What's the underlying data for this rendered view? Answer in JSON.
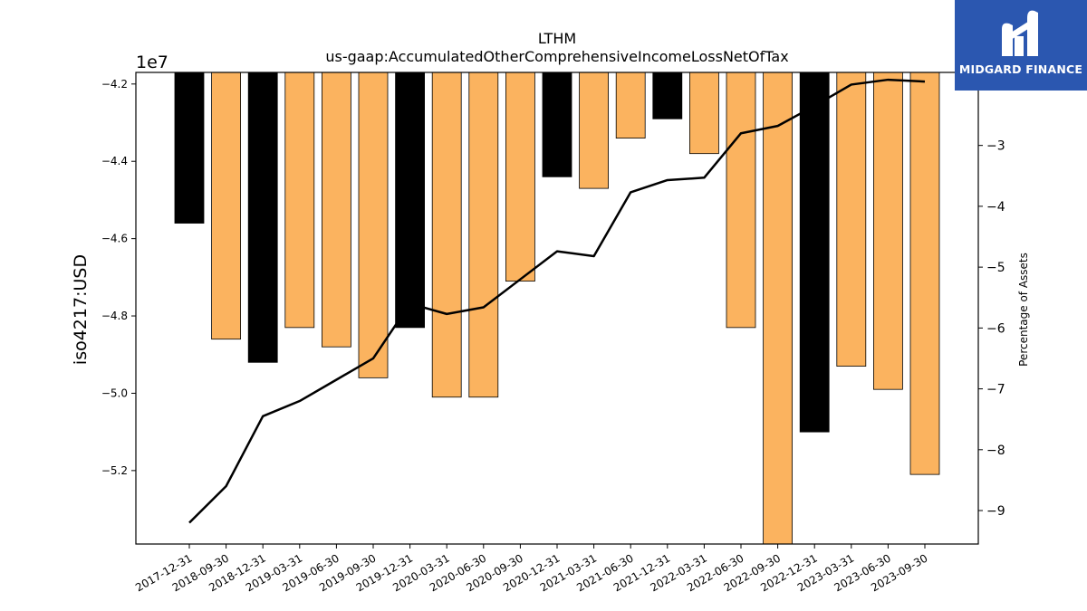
{
  "chart_data": {
    "type": "bar",
    "title": "LTHM",
    "subtitle": "us-gaap:AccumulatedOtherComprehensiveIncomeLossNetOfTax",
    "ylabel": "iso4217:USD",
    "y2label": "Percentage of Assets",
    "y_offset_label": "1e7",
    "categories": [
      "2017-12-31",
      "2018-09-30",
      "2018-12-31",
      "2019-03-31",
      "2019-06-30",
      "2019-09-30",
      "2019-12-31",
      "2020-03-31",
      "2020-06-30",
      "2020-09-30",
      "2020-12-31",
      "2021-03-31",
      "2021-06-30",
      "2021-12-31",
      "2022-03-31",
      "2022-06-30",
      "2022-09-30",
      "2022-12-31",
      "2023-03-31",
      "2023-06-30",
      "2023-09-30"
    ],
    "values": [
      -45600000,
      -48600000,
      -49200000,
      -48300000,
      -48800000,
      -49600000,
      -48300000,
      -50100000,
      -50100000,
      -47100000,
      -44400000,
      -44700000,
      -43400000,
      -42900000,
      -43800000,
      -48300000,
      -53900000,
      -51000000,
      -49300000,
      -49900000,
      -52100000
    ],
    "bar_colors": [
      "#000000",
      "#fbb35f",
      "#000000",
      "#fbb35f",
      "#fbb35f",
      "#fbb35f",
      "#000000",
      "#fbb35f",
      "#fbb35f",
      "#fbb35f",
      "#000000",
      "#fbb35f",
      "#fbb35f",
      "#000000",
      "#fbb35f",
      "#fbb35f",
      "#fbb35f",
      "#000000",
      "#fbb35f",
      "#fbb35f",
      "#fbb35f"
    ],
    "ylim": [
      -53900000,
      -41700000
    ],
    "yticks": [
      -42000000,
      -44000000,
      -46000000,
      -48000000,
      -50000000,
      -52000000
    ],
    "ytick_labels": [
      "−4.2",
      "−4.4",
      "−4.6",
      "−4.8",
      "−5.0",
      "−5.2"
    ],
    "line_series": {
      "name": "Percentage of Assets",
      "axis": "right",
      "color": "#000000",
      "values": [
        -9.2,
        -8.6,
        -7.45,
        -7.2,
        -6.85,
        -6.5,
        -5.6,
        -5.77,
        -5.66,
        -5.2,
        -4.74,
        -4.82,
        -3.77,
        -3.57,
        -3.53,
        -2.8,
        -2.68,
        -2.35,
        -2.0,
        -1.92,
        -1.95
      ]
    },
    "y2lim": [
      -9.55,
      -1.8
    ],
    "y2ticks": [
      -3,
      -4,
      -5,
      -6,
      -7,
      -8,
      -9
    ],
    "y2tick_labels": [
      "−3",
      "−4",
      "−5",
      "−6",
      "−7",
      "−8",
      "−9"
    ]
  },
  "logo": {
    "name": "MIDGARD FINANCE",
    "bg_color": "#2b57b0"
  }
}
